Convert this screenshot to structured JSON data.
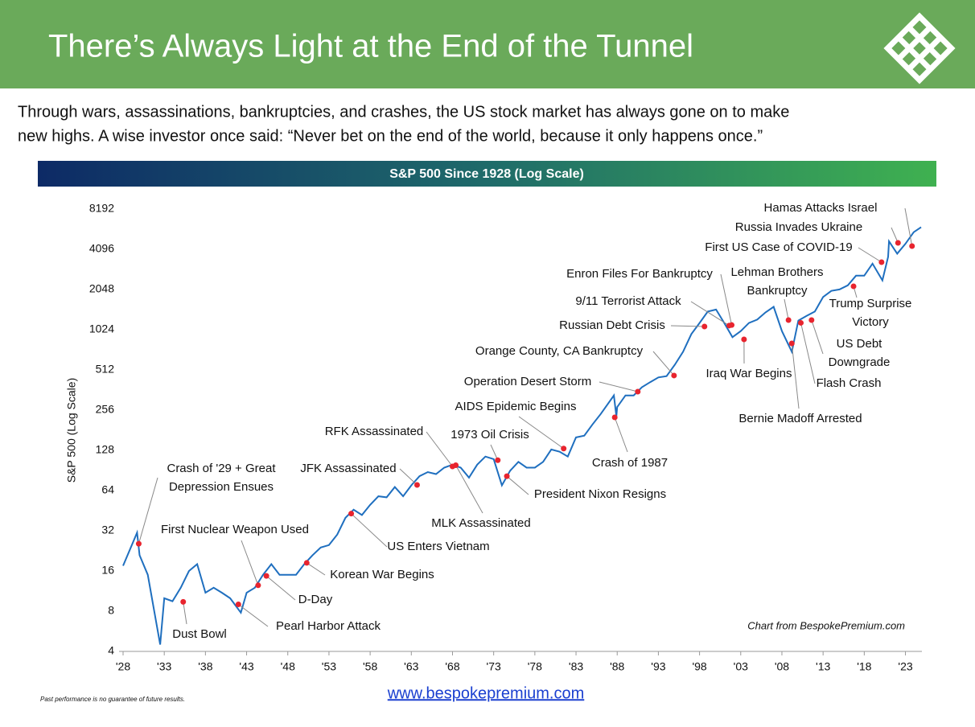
{
  "header": {
    "title": "There’s Always Light at the End of the Tunnel",
    "subtitle": [
      "Through wars, assassinations, bankruptcies, and crashes, the US stock market has always gone on to make",
      "new highs.  A wise investor once said: “Never bet on the end of the world, because it only happens once.”"
    ]
  },
  "chart_data": {
    "type": "line",
    "title": "S&P 500 Since 1928 (Log Scale)",
    "y_label": "S&P 500 (Log Scale)",
    "y_scale": "log",
    "grid": false,
    "source": "Chart from BespokePremium.com",
    "xlim": [
      1928,
      2025
    ],
    "ylim": [
      4,
      8192
    ],
    "xticks": [
      {
        "value": 1928,
        "label": "'28"
      },
      {
        "value": 1933,
        "label": "'33"
      },
      {
        "value": 1938,
        "label": "'38"
      },
      {
        "value": 1943,
        "label": "'43"
      },
      {
        "value": 1948,
        "label": "'48"
      },
      {
        "value": 1953,
        "label": "'53"
      },
      {
        "value": 1958,
        "label": "'58"
      },
      {
        "value": 1963,
        "label": "'63"
      },
      {
        "value": 1968,
        "label": "'68"
      },
      {
        "value": 1973,
        "label": "'73"
      },
      {
        "value": 1978,
        "label": "'78"
      },
      {
        "value": 1983,
        "label": "'83"
      },
      {
        "value": 1988,
        "label": "'88"
      },
      {
        "value": 1993,
        "label": "'93"
      },
      {
        "value": 1998,
        "label": "'98"
      },
      {
        "value": 2003,
        "label": "'03"
      },
      {
        "value": 2008,
        "label": "'08"
      },
      {
        "value": 2013,
        "label": "'13"
      },
      {
        "value": 2018,
        "label": "'18"
      },
      {
        "value": 2023,
        "label": "'23"
      }
    ],
    "yticks": [
      4,
      8,
      16,
      32,
      64,
      128,
      256,
      512,
      1024,
      2048,
      4096,
      8192
    ],
    "x": [
      1928,
      1929.7,
      1930,
      1931,
      1932.5,
      1933,
      1934,
      1935,
      1936,
      1937,
      1938,
      1939,
      1940,
      1941,
      1942.3,
      1943,
      1944,
      1945,
      1946,
      1947,
      1948,
      1949,
      1950,
      1951,
      1952,
      1953,
      1954,
      1955,
      1956,
      1957,
      1958,
      1959,
      1960,
      1961,
      1962,
      1963,
      1964,
      1965,
      1966,
      1967,
      1968,
      1969,
      1970,
      1971,
      1972,
      1973,
      1974,
      1975,
      1976,
      1977,
      1978,
      1979,
      1980,
      1981,
      1982,
      1983,
      1984,
      1985,
      1986,
      1987.6,
      1987.9,
      1988,
      1989,
      1990,
      1991,
      1992,
      1993,
      1994,
      1995,
      1996,
      1997,
      1998,
      1999,
      2000,
      2001,
      2002,
      2003,
      2004,
      2005,
      2006,
      2007,
      2008,
      2009.2,
      2010,
      2011,
      2012,
      2013,
      2014,
      2015,
      2016,
      2017,
      2018,
      2019,
      2020.2,
      2020.9,
      2021,
      2022,
      2023,
      2024,
      2024.9
    ],
    "series": [
      {
        "name": "S&P 500",
        "color": "#1f6fbf",
        "values": [
          17.5,
          31,
          21,
          15,
          4.5,
          10,
          9.5,
          12,
          16,
          18,
          11,
          12,
          11,
          10,
          7.8,
          11,
          12,
          15,
          18,
          15,
          15,
          15,
          18,
          21,
          24,
          25,
          30,
          40,
          46,
          42,
          50,
          58,
          57,
          68,
          58,
          70,
          82,
          88,
          85,
          95,
          100,
          95,
          80,
          100,
          115,
          110,
          70,
          90,
          105,
          95,
          95,
          105,
          130,
          125,
          115,
          160,
          165,
          200,
          240,
          330,
          230,
          270,
          330,
          330,
          380,
          415,
          450,
          460,
          560,
          700,
          950,
          1150,
          1400,
          1450,
          1150,
          900,
          1000,
          1150,
          1220,
          1380,
          1520,
          1000,
          700,
          1200,
          1300,
          1400,
          1800,
          2000,
          2050,
          2200,
          2600,
          2600,
          3200,
          2400,
          3600,
          4700,
          3800,
          4500,
          5500,
          6000
        ]
      }
    ],
    "event_color": "#e8242e",
    "events": [
      {
        "label": [
          "Crash of '29 + Great",
          "Depression Ensues"
        ],
        "x": 1929.9,
        "y": 25.6
      },
      {
        "label": [
          "Dust Bowl"
        ],
        "x": 1935.3,
        "y": 9.4
      },
      {
        "label": [
          "Pearl Harbor Attack"
        ],
        "x": 1942,
        "y": 9
      },
      {
        "label": [
          "First Nuclear Weapon Used"
        ],
        "x": 1944.4,
        "y": 12.5
      },
      {
        "label": [
          "D-Day"
        ],
        "x": 1945.4,
        "y": 14.7
      },
      {
        "label": [
          "Korean War Begins"
        ],
        "x": 1950.3,
        "y": 18.4
      },
      {
        "label": [
          "US Enters Vietnam"
        ],
        "x": 1955.7,
        "y": 43
      },
      {
        "label": [
          "JFK Assassinated"
        ],
        "x": 1963.7,
        "y": 70.5
      },
      {
        "label": [
          "RFK Assassinated"
        ],
        "x": 1968,
        "y": 97
      },
      {
        "label": [
          "MLK Assassinated"
        ],
        "x": 1968.4,
        "y": 99
      },
      {
        "label": [
          "1973 Oil Crisis"
        ],
        "x": 1973.5,
        "y": 108
      },
      {
        "label": [
          "President Nixon Resigns"
        ],
        "x": 1974.6,
        "y": 82
      },
      {
        "label": [
          "AIDS Epidemic Begins"
        ],
        "x": 1981.5,
        "y": 132
      },
      {
        "label": [
          "Crash of 1987"
        ],
        "x": 1987.7,
        "y": 226
      },
      {
        "label": [
          "Operation Desert Storm"
        ],
        "x": 1990.5,
        "y": 352
      },
      {
        "label": [
          "Orange County, CA Bankruptcy"
        ],
        "x": 1994.9,
        "y": 465
      },
      {
        "label": [
          "Russian Debt Crisis"
        ],
        "x": 1998.6,
        "y": 1082
      },
      {
        "label": [
          "9/11 Terrorist Attack"
        ],
        "x": 2001.6,
        "y": 1100
      },
      {
        "label": [
          "Enron Files For Bankruptcy"
        ],
        "x": 2001.9,
        "y": 1110
      },
      {
        "label": [
          "Iraq War Begins"
        ],
        "x": 2003.4,
        "y": 867
      },
      {
        "label": [
          "Lehman Brothers",
          "Bankruptcy"
        ],
        "x": 2008.8,
        "y": 1209
      },
      {
        "label": [
          "Bernie Madoff Arrested"
        ],
        "x": 2009.2,
        "y": 809
      },
      {
        "label": [
          "Flash Crash"
        ],
        "x": 2010.3,
        "y": 1153
      },
      {
        "label": [
          "US Debt",
          "Downgrade"
        ],
        "x": 2011.6,
        "y": 1209
      },
      {
        "label": [
          "Trump Surprise",
          "Victory"
        ],
        "x": 2016.7,
        "y": 2165
      },
      {
        "label": [
          "First US Case of COVID-19"
        ],
        "x": 2020.1,
        "y": 3281
      },
      {
        "label": [
          "Russia Invades Ukraine"
        ],
        "x": 2022.1,
        "y": 4576
      },
      {
        "label": [
          "Hamas Attacks Israel"
        ],
        "x": 2023.8,
        "y": 4330
      }
    ]
  },
  "footer": {
    "disclaimer": "Past performance is no guarantee of future results.",
    "url": "www.bespokepremium.com"
  }
}
